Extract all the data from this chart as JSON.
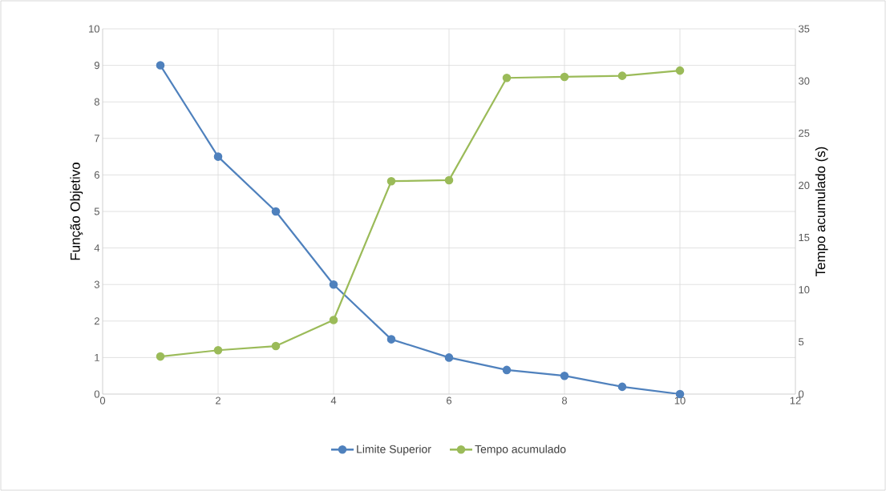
{
  "chart_data": {
    "type": "line",
    "xlabel": null,
    "ylabel": "Função Objetivo",
    "y2label": "Tempo acumulado (s)",
    "x": [
      1,
      2,
      3,
      4,
      5,
      6,
      7,
      8,
      9,
      10
    ],
    "series": [
      {
        "name": "Limite Superior",
        "color": "#4f81bd",
        "values": [
          9,
          6.5,
          5,
          3,
          1.5,
          1,
          0.66,
          0.5,
          0.2,
          0
        ]
      },
      {
        "name": "Tempo acumulado",
        "color": "#9bbb59",
        "axis": "y2",
        "values": [
          3.6,
          4.2,
          4.6,
          7.1,
          20.4,
          20.5,
          30.3,
          30.4,
          30.5,
          31.0
        ]
      }
    ],
    "xlim": [
      0,
      12
    ],
    "xticks": [
      0,
      2,
      4,
      6,
      8,
      10,
      12
    ],
    "ylim": [
      0,
      10
    ],
    "yticks": [
      0,
      1,
      2,
      3,
      4,
      5,
      6,
      7,
      8,
      9,
      10
    ],
    "y2lim": [
      0,
      35
    ],
    "y2ticks": [
      0,
      5,
      10,
      15,
      20,
      25,
      30,
      35
    ],
    "grid": true,
    "legend": "bottom",
    "marker": "circle",
    "line_style": "solid"
  }
}
